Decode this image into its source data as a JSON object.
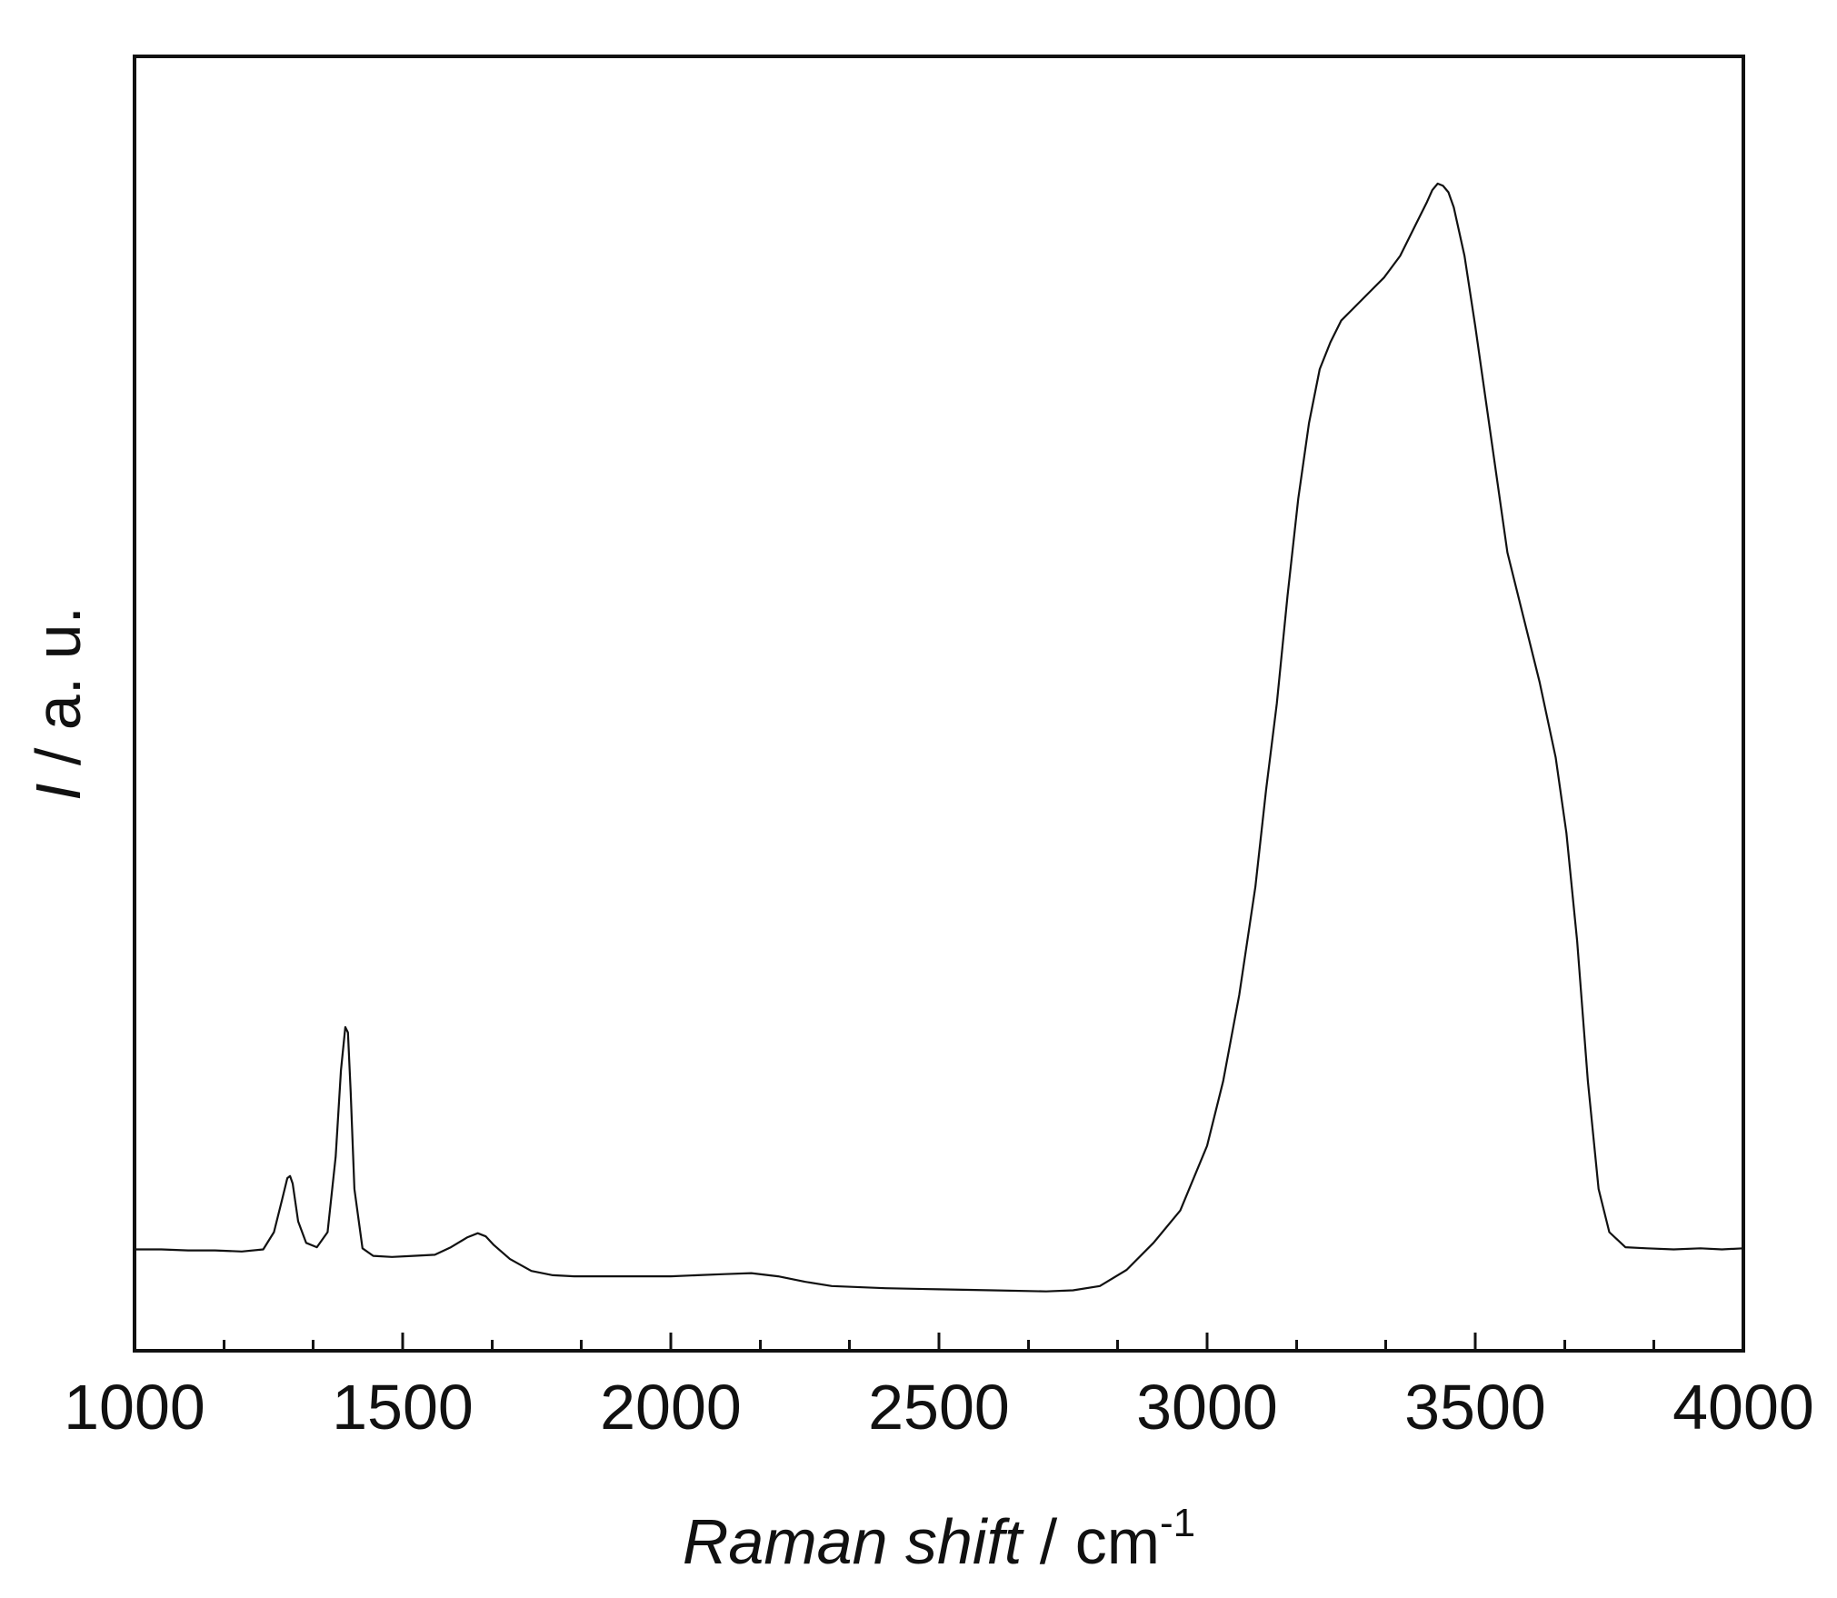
{
  "chart_data": {
    "type": "line",
    "title": "",
    "xlabel": {
      "italic": "Raman shift",
      "rest": " / cm",
      "superscript": "-1"
    },
    "ylabel": {
      "italic": "I",
      "rest": " / a. u."
    },
    "xlim": [
      1000,
      4000
    ],
    "ylim": [
      0,
      1.2
    ],
    "x_ticks_major": [
      1000,
      1500,
      2000,
      2500,
      3000,
      3500,
      4000
    ],
    "x_ticks_minor": [
      1167,
      1333,
      1667,
      1833,
      2167,
      2333,
      2667,
      2833,
      3167,
      3333,
      3667,
      3833
    ],
    "y_ticks_shown": false,
    "grid": false,
    "legend": "none",
    "line_color": "#111111",
    "series": [
      {
        "x": [
          1000,
          1050,
          1100,
          1150,
          1200,
          1240,
          1260,
          1275,
          1285,
          1290,
          1295,
          1305,
          1320,
          1340,
          1360,
          1375,
          1385,
          1393,
          1398,
          1403,
          1410,
          1425,
          1445,
          1480,
          1520,
          1560,
          1590,
          1620,
          1640,
          1655,
          1670,
          1700,
          1740,
          1780,
          1820,
          1880,
          1950,
          2000,
          2050,
          2100,
          2150,
          2200,
          2250,
          2300,
          2400,
          2500,
          2600,
          2700,
          2750,
          2800,
          2850,
          2900,
          2950,
          3000,
          3030,
          3060,
          3090,
          3110,
          3130,
          3150,
          3170,
          3190,
          3210,
          3230,
          3250,
          3270,
          3290,
          3310,
          3330,
          3360,
          3390,
          3410,
          3420,
          3430,
          3440,
          3450,
          3460,
          3480,
          3500,
          3520,
          3540,
          3560,
          3590,
          3620,
          3650,
          3670,
          3690,
          3710,
          3730,
          3750,
          3780,
          3820,
          3870,
          3920,
          3960,
          4000
        ],
        "y": [
          0.094,
          0.094,
          0.093,
          0.093,
          0.092,
          0.094,
          0.11,
          0.14,
          0.16,
          0.162,
          0.155,
          0.12,
          0.1,
          0.096,
          0.11,
          0.18,
          0.26,
          0.3,
          0.295,
          0.24,
          0.15,
          0.095,
          0.088,
          0.087,
          0.088,
          0.089,
          0.096,
          0.105,
          0.109,
          0.106,
          0.098,
          0.085,
          0.074,
          0.07,
          0.069,
          0.069,
          0.069,
          0.069,
          0.07,
          0.071,
          0.072,
          0.069,
          0.064,
          0.06,
          0.058,
          0.057,
          0.056,
          0.055,
          0.056,
          0.06,
          0.075,
          0.1,
          0.13,
          0.19,
          0.25,
          0.33,
          0.43,
          0.52,
          0.6,
          0.7,
          0.79,
          0.86,
          0.91,
          0.935,
          0.955,
          0.965,
          0.975,
          0.985,
          0.995,
          1.015,
          1.045,
          1.065,
          1.076,
          1.082,
          1.08,
          1.074,
          1.06,
          1.015,
          0.95,
          0.88,
          0.81,
          0.74,
          0.68,
          0.62,
          0.55,
          0.48,
          0.38,
          0.25,
          0.15,
          0.11,
          0.096,
          0.095,
          0.094,
          0.095,
          0.094,
          0.095
        ]
      }
    ]
  }
}
